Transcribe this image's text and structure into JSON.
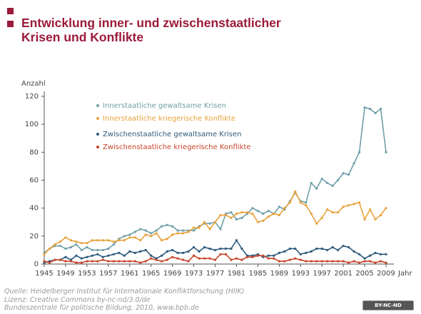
{
  "chart_data": {
    "type": "line",
    "title": "Entwicklung inner- und zwischenstaatlicher Krisen und Konflikte",
    "y_label": "Anzahl",
    "x_label": "Jahr",
    "source": [
      "Quelle: Heidelberger Institut für Internationale Konfliktforschung (HIIK)",
      "Lizenz: Creative Commons by-nc-nd/3.0/de",
      "Bundeszentrale für politische Bildung, 2010, www.bpb.de"
    ],
    "license": "BY-NC-ND",
    "x": [
      1945,
      1946,
      1947,
      1948,
      1949,
      1950,
      1951,
      1952,
      1953,
      1954,
      1955,
      1956,
      1957,
      1958,
      1959,
      1960,
      1961,
      1962,
      1963,
      1964,
      1965,
      1966,
      1967,
      1968,
      1969,
      1970,
      1971,
      1972,
      1973,
      1974,
      1975,
      1976,
      1977,
      1978,
      1979,
      1980,
      1981,
      1982,
      1983,
      1984,
      1985,
      1986,
      1987,
      1988,
      1989,
      1990,
      1991,
      1992,
      1993,
      1994,
      1995,
      1996,
      1997,
      1998,
      1999,
      2000,
      2001,
      2002,
      2003,
      2004,
      2005,
      2006,
      2007,
      2008,
      2009
    ],
    "xlim": [
      1945,
      2009
    ],
    "xticks": [
      1945,
      1949,
      1953,
      1957,
      1961,
      1965,
      1969,
      1973,
      1977,
      1981,
      1985,
      1989,
      1993,
      1997,
      2001,
      2005,
      2009
    ],
    "ylim": [
      0,
      120
    ],
    "yticks": [
      0,
      20,
      40,
      60,
      80,
      100,
      120
    ],
    "series": [
      {
        "name": "Innerstaatliche gewaltsame Krisen",
        "color": "#6e9fa8",
        "values": [
          8,
          11,
          13,
          13,
          11,
          12,
          14,
          10,
          12,
          10,
          10,
          10,
          11,
          14,
          18,
          20,
          21,
          23,
          25,
          24,
          22,
          24,
          27,
          28,
          27,
          24,
          24,
          24,
          24,
          27,
          29,
          29,
          30,
          25,
          36,
          37,
          32,
          33,
          36,
          40,
          38,
          36,
          38,
          36,
          41,
          39,
          45,
          51,
          45,
          44,
          58,
          54,
          61,
          58,
          56,
          60,
          65,
          64,
          72,
          80,
          112,
          111,
          108,
          111,
          80
        ]
      },
      {
        "name": "Innerstaatliche kriegerische Konflikte",
        "color": "#e8a23a",
        "values": [
          7,
          11,
          14,
          16,
          19,
          17,
          16,
          15,
          15,
          17,
          17,
          17,
          17,
          16,
          17,
          17,
          19,
          19,
          17,
          21,
          20,
          22,
          17,
          18,
          21,
          22,
          22,
          23,
          26,
          26,
          30,
          25,
          30,
          35,
          35,
          33,
          36,
          37,
          37,
          36,
          30,
          31,
          34,
          36,
          35,
          40,
          44,
          52,
          44,
          42,
          36,
          29,
          33,
          39,
          37,
          37,
          41,
          42,
          43,
          44,
          32,
          39,
          32,
          35,
          40
        ]
      },
      {
        "name": "Zwischenstaatliche gewaltsame Krisen",
        "color": "#2d5a7b",
        "values": [
          1,
          2,
          3,
          3,
          5,
          3,
          6,
          4,
          5,
          6,
          7,
          5,
          6,
          7,
          8,
          6,
          9,
          8,
          9,
          10,
          6,
          4,
          6,
          9,
          10,
          8,
          8,
          9,
          12,
          9,
          12,
          11,
          10,
          11,
          11,
          11,
          17,
          11,
          6,
          6,
          7,
          5,
          6,
          6,
          8,
          9,
          11,
          11,
          7,
          8,
          9,
          11,
          11,
          10,
          12,
          10,
          13,
          12,
          9,
          7,
          4,
          6,
          8,
          7,
          7
        ]
      },
      {
        "name": "Zwischenstaatliche kriegerische Konflikte",
        "color": "#c8452b",
        "values": [
          2,
          1,
          3,
          3,
          2,
          2,
          1,
          1,
          2,
          2,
          2,
          3,
          2,
          2,
          2,
          2,
          2,
          2,
          1,
          2,
          4,
          3,
          2,
          3,
          5,
          4,
          3,
          2,
          6,
          4,
          4,
          4,
          3,
          7,
          7,
          3,
          4,
          3,
          5,
          5,
          6,
          6,
          4,
          4,
          2,
          2,
          3,
          4,
          3,
          2,
          2,
          2,
          2,
          2,
          2,
          2,
          2,
          1,
          2,
          1,
          2,
          2,
          1,
          2,
          1
        ]
      }
    ]
  }
}
